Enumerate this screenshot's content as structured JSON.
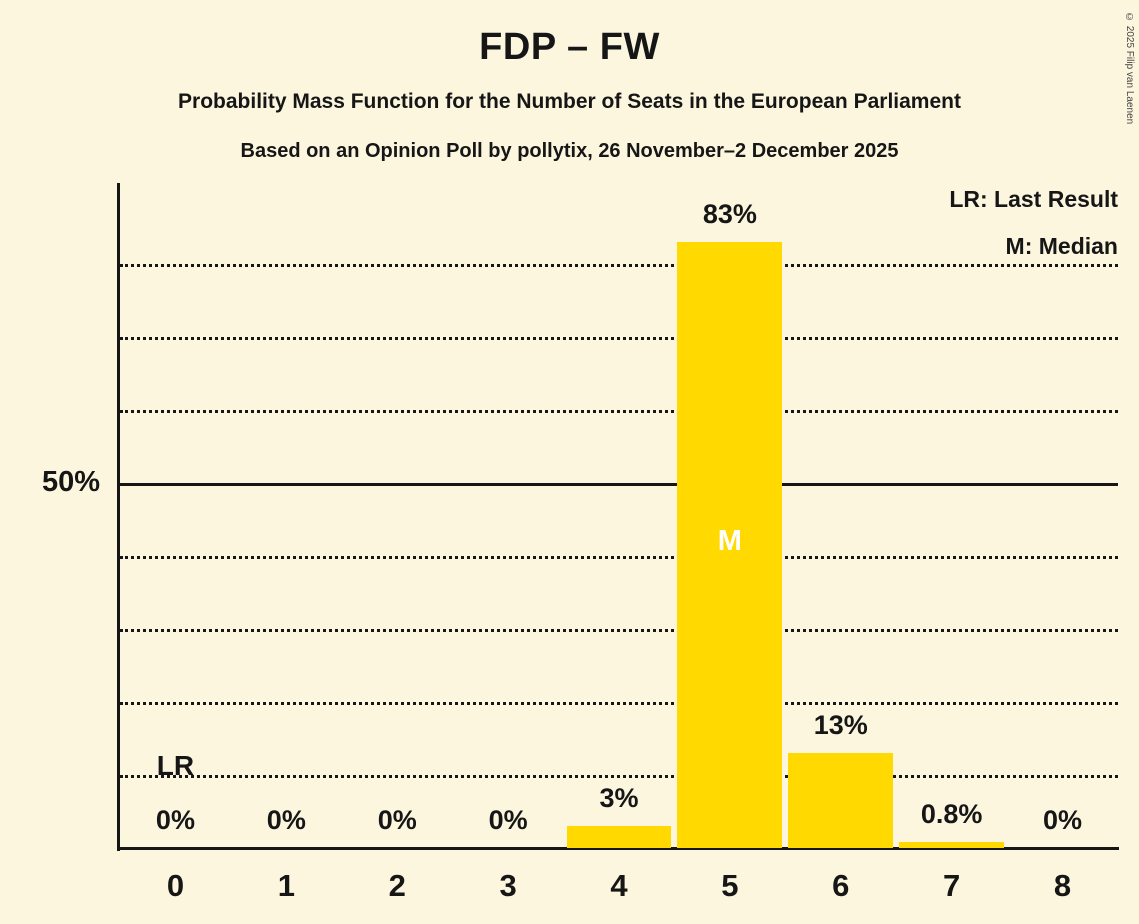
{
  "title": "FDP – FW",
  "subtitle1": "Probability Mass Function for the Number of Seats in the European Parliament",
  "subtitle2": "Based on an Opinion Poll by pollytix, 26 November–2 December 2025",
  "copyright": "© 2025 Filip van Laenen",
  "legend": {
    "lr": "LR: Last Result",
    "m": "M: Median"
  },
  "y_axis": {
    "label_50": "50%"
  },
  "chart_data": {
    "type": "bar",
    "title": "FDP – FW",
    "categories": [
      "0",
      "1",
      "2",
      "3",
      "4",
      "5",
      "6",
      "7",
      "8"
    ],
    "values": [
      0,
      0,
      0,
      0,
      3,
      83,
      13,
      0.8,
      0
    ],
    "value_labels": [
      "0%",
      "0%",
      "0%",
      "0%",
      "3%",
      "83%",
      "13%",
      "0.8%",
      "0%"
    ],
    "ylim": [
      0,
      100
    ],
    "gridlines_dotted_pct": [
      10,
      20,
      30,
      40,
      60,
      70,
      80
    ],
    "gridline_solid_pct": 50,
    "median_seat": "5",
    "median_label": "M",
    "last_result_seat": "0",
    "last_result_label": "LR",
    "bar_color": "#FFD900",
    "median_text_color": "#FFFFFF",
    "legend_position": "top-right",
    "grid": true
  }
}
